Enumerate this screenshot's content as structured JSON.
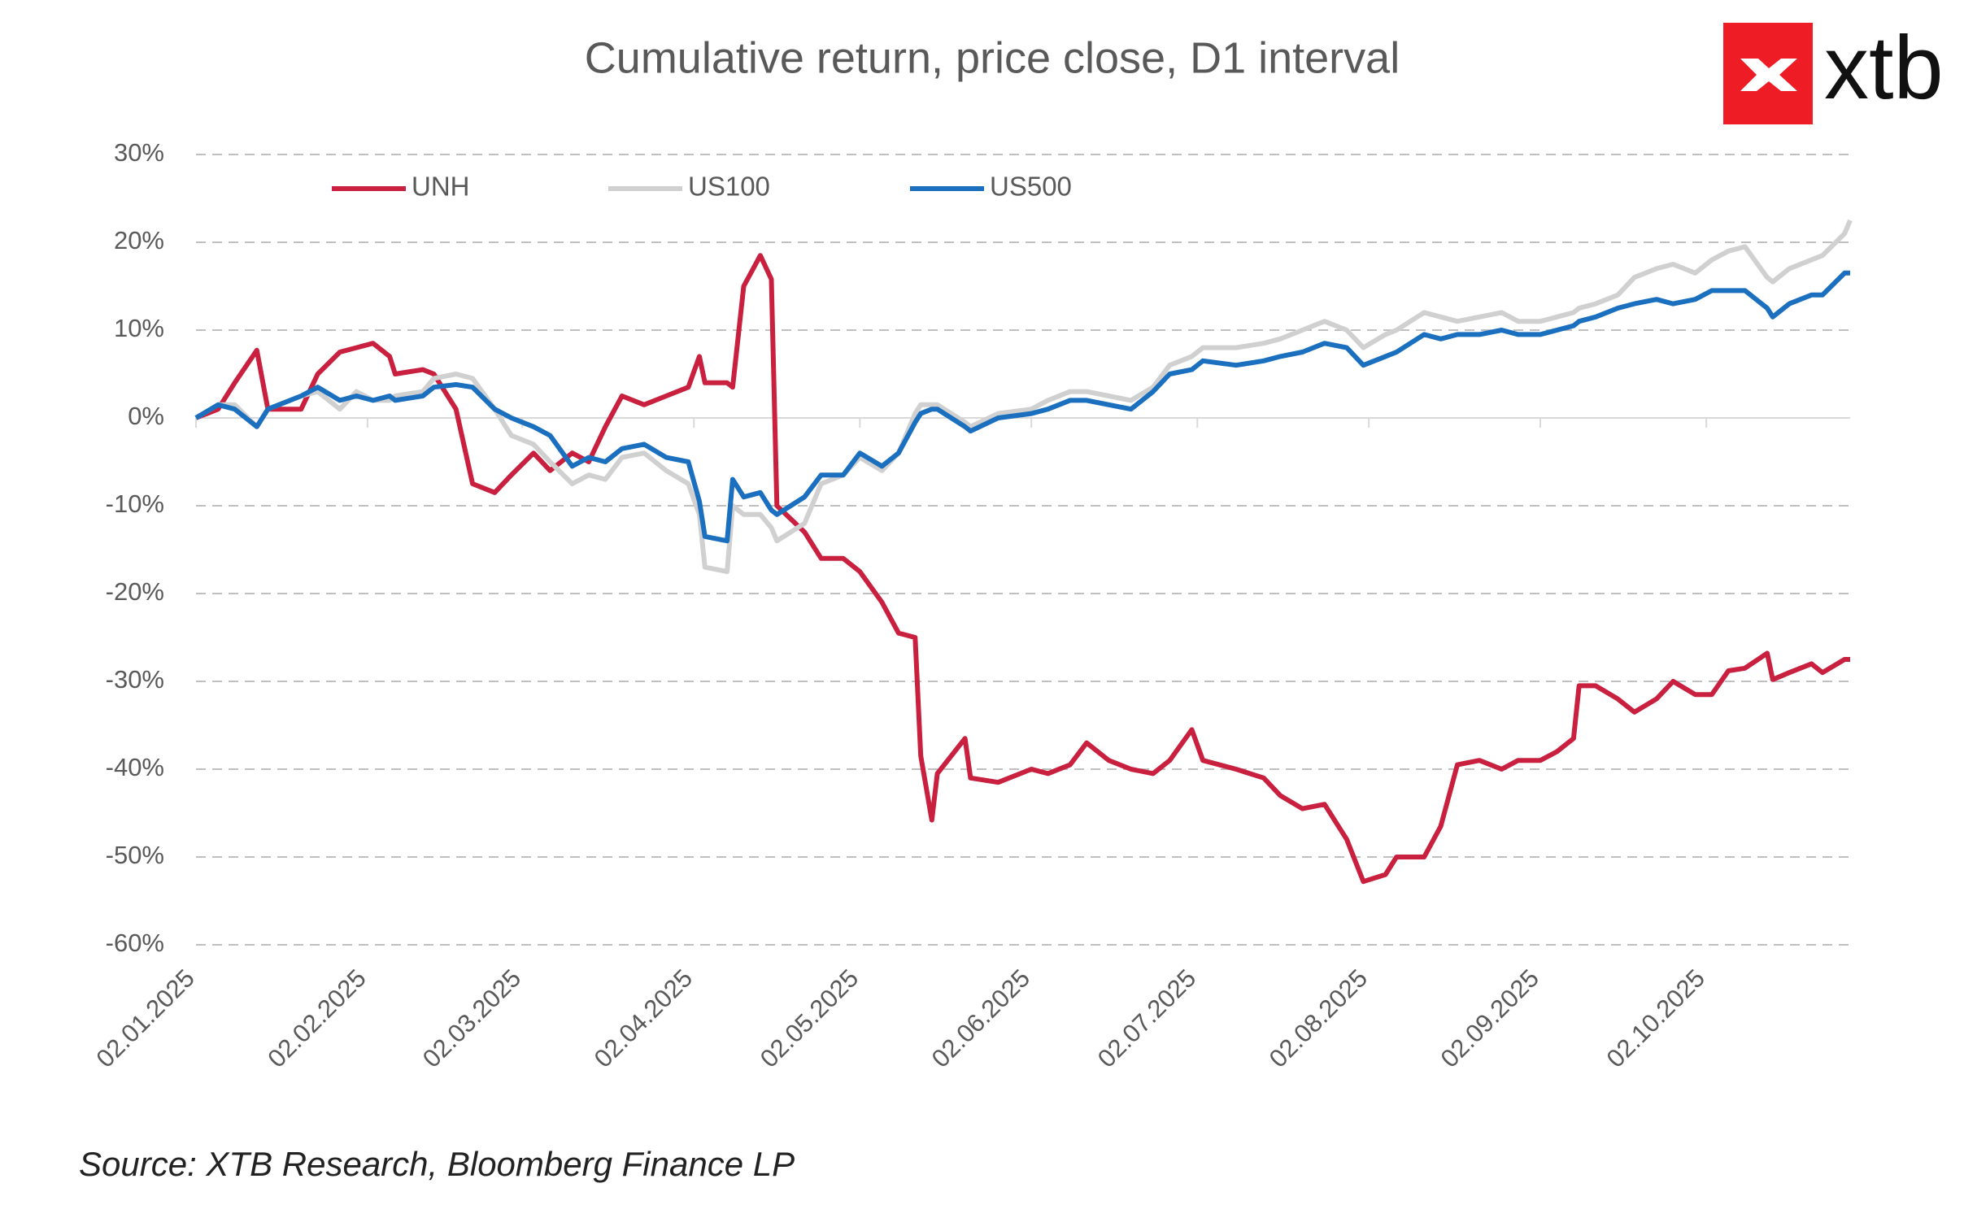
{
  "chart_data": {
    "type": "line",
    "title": "Cumulative return, price close, D1 interval",
    "logo": "xtb",
    "source": "Source: XTB Research, Bloomberg Finance LP",
    "x": [
      "02.01.2025",
      "06.01.2025",
      "09.01.2025",
      "13.01.2025",
      "15.01.2025",
      "21.01.2025",
      "24.01.2025",
      "28.01.2025",
      "31.01.2025",
      "03.02.2025",
      "06.02.2025",
      "07.02.2025",
      "12.02.2025",
      "14.02.2025",
      "18.02.2025",
      "21.02.2025",
      "25.02.2025",
      "28.02.2025",
      "04.03.2025",
      "07.03.2025",
      "11.03.2025",
      "14.03.2025",
      "17.03.2025",
      "20.03.2025",
      "24.03.2025",
      "28.03.2025",
      "01.04.2025",
      "03.04.2025",
      "04.04.2025",
      "08.04.2025",
      "09.04.2025",
      "11.04.2025",
      "14.04.2025",
      "16.04.2025",
      "17.04.2025",
      "22.04.2025",
      "25.04.2025",
      "29.04.2025",
      "02.05.2025",
      "06.05.2025",
      "09.05.2025",
      "12.05.2025",
      "13.05.2025",
      "15.05.2025",
      "16.05.2025",
      "21.05.2025",
      "22.05.2025",
      "27.05.2025",
      "02.06.2025",
      "05.06.2025",
      "09.06.2025",
      "12.06.2025",
      "16.06.2025",
      "20.06.2025",
      "24.06.2025",
      "27.06.2025",
      "01.07.2025",
      "03.07.2025",
      "09.07.2025",
      "14.07.2025",
      "17.07.2025",
      "21.07.2025",
      "25.07.2025",
      "29.07.2025",
      "01.08.2025",
      "05.08.2025",
      "07.08.2025",
      "12.08.2025",
      "15.08.2025",
      "18.08.2025",
      "22.08.2025",
      "26.08.2025",
      "29.08.2025",
      "02.09.2025",
      "05.09.2025",
      "08.09.2025",
      "09.09.2025",
      "12.09.2025",
      "16.09.2025",
      "19.09.2025",
      "23.09.2025",
      "26.09.2025",
      "30.09.2025",
      "03.10.2025",
      "06.10.2025",
      "09.10.2025",
      "13.10.2025",
      "14.10.2025",
      "17.10.2025",
      "21.10.2025",
      "23.10.2025",
      "27.10.2025",
      "28.10.2025"
    ],
    "series": [
      {
        "name": "UNH",
        "color": "#c8203e",
        "values": [
          0,
          1,
          4,
          7.7,
          1,
          1,
          5,
          7.5,
          8,
          8.5,
          7,
          5,
          5.5,
          5,
          1,
          -7.5,
          -8.5,
          -6.5,
          -4,
          -6,
          -4,
          -5,
          -1,
          2.5,
          1.5,
          2.5,
          3.5,
          7,
          4,
          4,
          3.5,
          15,
          18.5,
          15.8,
          -10,
          -13,
          -16,
          -16,
          -17.5,
          -21,
          -24.5,
          -25,
          -38.5,
          -45.8,
          -40.5,
          -36.5,
          -41,
          -41.5,
          -40,
          -40.5,
          -39.5,
          -37,
          -39,
          -40,
          -40.5,
          -39,
          -35.5,
          -39,
          -40,
          -41,
          -43,
          -44.5,
          -44,
          -48,
          -52.8,
          -52,
          -50,
          -50,
          -46.5,
          -39.5,
          -39,
          -40,
          -39,
          -39,
          -38,
          -36.5,
          -30.5,
          -30.5,
          -32,
          -33.5,
          -32,
          -30,
          -31.5,
          -31.5,
          -28.8,
          -28.5,
          -26.8,
          -29.8,
          -29,
          -28,
          -29,
          -27.5,
          -27.5
        ]
      },
      {
        "name": "US100",
        "color": "#d0d0d0",
        "values": [
          0,
          1.5,
          1.5,
          -1,
          1,
          2.5,
          3,
          1,
          3,
          2,
          2,
          2.5,
          3,
          4.5,
          5,
          4.5,
          1,
          -2,
          -3,
          -5,
          -7.5,
          -6.5,
          -7,
          -4.5,
          -4,
          -6,
          -7.5,
          -11,
          -17,
          -17.5,
          -10,
          -11,
          -11,
          -12.5,
          -14,
          -12,
          -7.5,
          -6.5,
          -4.5,
          -6,
          -4,
          0.5,
          1.5,
          1.5,
          1.5,
          -0.5,
          -1,
          0.5,
          1,
          2,
          3,
          3,
          2.5,
          2,
          3.5,
          6,
          7,
          8,
          8,
          8.5,
          9,
          10,
          11,
          10,
          8,
          9.5,
          10,
          12,
          11.5,
          11,
          11.5,
          12,
          11,
          11,
          11.5,
          12,
          12.5,
          13,
          14,
          16,
          17,
          17.5,
          16.5,
          18,
          19,
          19.5,
          16,
          15.5,
          17,
          18,
          18.5,
          21,
          22.5
        ]
      },
      {
        "name": "US500",
        "color": "#1a6fbf",
        "values": [
          0,
          1.5,
          1,
          -1,
          1,
          2.5,
          3.5,
          2,
          2.5,
          2,
          2.5,
          2,
          2.5,
          3.5,
          3.8,
          3.5,
          1,
          0,
          -1,
          -2,
          -5.5,
          -4.5,
          -5,
          -3.5,
          -3,
          -4.5,
          -5,
          -9.5,
          -13.5,
          -14,
          -7,
          -9,
          -8.5,
          -10.5,
          -11,
          -9,
          -6.5,
          -6.5,
          -4,
          -5.5,
          -4,
          -0.5,
          0.5,
          1,
          1,
          -1,
          -1.5,
          0,
          0.5,
          1,
          2,
          2,
          1.5,
          1,
          3,
          5,
          5.5,
          6.5,
          6,
          6.5,
          7,
          7.5,
          8.5,
          8,
          6,
          7,
          7.5,
          9.5,
          9,
          9.5,
          9.5,
          10,
          9.5,
          9.5,
          10,
          10.5,
          11,
          11.5,
          12.5,
          13,
          13.5,
          13,
          13.5,
          14.5,
          14.5,
          14.5,
          12.5,
          11.5,
          13,
          14,
          14,
          16.5,
          16.5
        ]
      }
    ],
    "xlim": [
      "02.01.2025",
      "28.10.2025"
    ],
    "xticks": [
      "02.01.2025",
      "02.02.2025",
      "02.03.2025",
      "02.04.2025",
      "02.05.2025",
      "02.06.2025",
      "02.07.2025",
      "02.08.2025",
      "02.09.2025",
      "02.10.2025"
    ],
    "ylim": [
      -60,
      30
    ],
    "yticks": [
      {
        "value": -60,
        "label": "-60%"
      },
      {
        "value": -50,
        "label": "-50%"
      },
      {
        "value": -40,
        "label": "-40%"
      },
      {
        "value": -30,
        "label": "-30%"
      },
      {
        "value": -20,
        "label": "-20%"
      },
      {
        "value": -10,
        "label": "-10%"
      },
      {
        "value": 0,
        "label": "0%"
      },
      {
        "value": 10,
        "label": "10%"
      },
      {
        "value": 20,
        "label": "20%"
      },
      {
        "value": 30,
        "label": "30%"
      }
    ],
    "grid": true,
    "legend": "top",
    "logo_color": "#ee1c25"
  }
}
